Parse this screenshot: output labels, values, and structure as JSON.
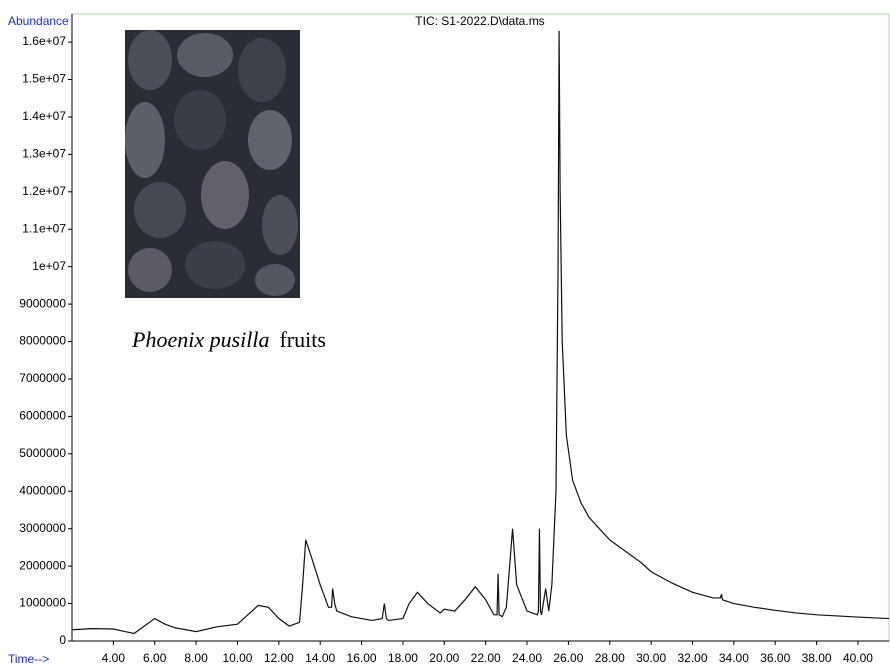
{
  "chart_data": {
    "type": "line",
    "title": "TIC: S1-2022.D\\data.ms",
    "y_label": "Abundance",
    "x_label": "Time-->",
    "annotation": {
      "species": "Phoenix pusilla",
      "text": "fruits"
    },
    "color": "#111111",
    "xlim": [
      2,
      41.5
    ],
    "ylim": [
      0,
      16750000
    ],
    "xticks": [
      {
        "value": 4,
        "label": "4.00"
      },
      {
        "value": 6,
        "label": "6.00"
      },
      {
        "value": 8,
        "label": "8.00"
      },
      {
        "value": 10,
        "label": "10.00"
      },
      {
        "value": 12,
        "label": "12.00"
      },
      {
        "value": 14,
        "label": "14.00"
      },
      {
        "value": 16,
        "label": "16.00"
      },
      {
        "value": 18,
        "label": "18.00"
      },
      {
        "value": 20,
        "label": "20.00"
      },
      {
        "value": 22,
        "label": "22.00"
      },
      {
        "value": 24,
        "label": "24.00"
      },
      {
        "value": 26,
        "label": "26.00"
      },
      {
        "value": 28,
        "label": "28.00"
      },
      {
        "value": 30,
        "label": "30.00"
      },
      {
        "value": 32,
        "label": "32.00"
      },
      {
        "value": 34,
        "label": "34.00"
      },
      {
        "value": 36,
        "label": "36.00"
      },
      {
        "value": 38,
        "label": "38.00"
      },
      {
        "value": 40,
        "label": "40.00"
      }
    ],
    "yticks": [
      0,
      1000000,
      2000000,
      3000000,
      4000000,
      5000000,
      6000000,
      7000000,
      8000000,
      9000000,
      {
        "value": 10000000,
        "label": "1e+07"
      },
      {
        "value": 11000000,
        "label": "1.1e+07"
      },
      {
        "value": 12000000,
        "label": "1.2e+07"
      },
      {
        "value": 13000000,
        "label": "1.3e+07"
      },
      {
        "value": 14000000,
        "label": "1.4e+07"
      },
      {
        "value": 15000000,
        "label": "1.5e+07"
      },
      {
        "value": 16000000,
        "label": "1.6e+07"
      }
    ],
    "x": [
      2,
      3,
      4,
      5,
      5.5,
      6,
      6.5,
      7,
      8,
      9,
      10,
      10.5,
      11,
      11.5,
      12,
      12.5,
      13,
      13.15,
      13.3,
      13.6,
      14,
      14.4,
      14.55,
      14.6,
      14.7,
      14.8,
      15.5,
      16.5,
      17,
      17.1,
      17.2,
      17.3,
      18,
      18.3,
      18.7,
      19.2,
      19.8,
      20,
      20.5,
      21,
      21.5,
      22,
      22.4,
      22.55,
      22.6,
      22.65,
      22.8,
      23,
      23.3,
      23.5,
      24,
      24.5,
      24.55,
      24.6,
      24.65,
      24.7,
      24.9,
      25.05,
      25.2,
      25.4,
      25.5,
      25.55,
      25.6,
      25.7,
      25.9,
      26.2,
      26.6,
      27,
      28,
      29,
      29.5,
      30,
      31,
      32,
      33,
      33.35,
      33.4,
      33.45,
      34,
      35,
      36,
      37,
      38,
      39,
      40,
      41.5
    ],
    "values": [
      300000,
      330000,
      320000,
      200000,
      400000,
      600000,
      450000,
      350000,
      250000,
      380000,
      450000,
      700000,
      950000,
      900000,
      600000,
      400000,
      500000,
      1500000,
      2700000,
      2200000,
      1500000,
      900000,
      900000,
      1400000,
      1000000,
      800000,
      650000,
      550000,
      600000,
      1000000,
      600000,
      550000,
      600000,
      1000000,
      1300000,
      1000000,
      750000,
      850000,
      800000,
      1100000,
      1450000,
      1100000,
      700000,
      700000,
      1800000,
      700000,
      650000,
      900000,
      3000000,
      1500000,
      800000,
      700000,
      800000,
      3000000,
      800000,
      700000,
      1400000,
      800000,
      1500000,
      4000000,
      10000000,
      16300000,
      12000000,
      8000000,
      5500000,
      4300000,
      3700000,
      3300000,
      2700000,
      2300000,
      2100000,
      1850000,
      1550000,
      1300000,
      1150000,
      1150000,
      1250000,
      1100000,
      1000000,
      900000,
      820000,
      750000,
      700000,
      670000,
      640000,
      600000
    ]
  }
}
